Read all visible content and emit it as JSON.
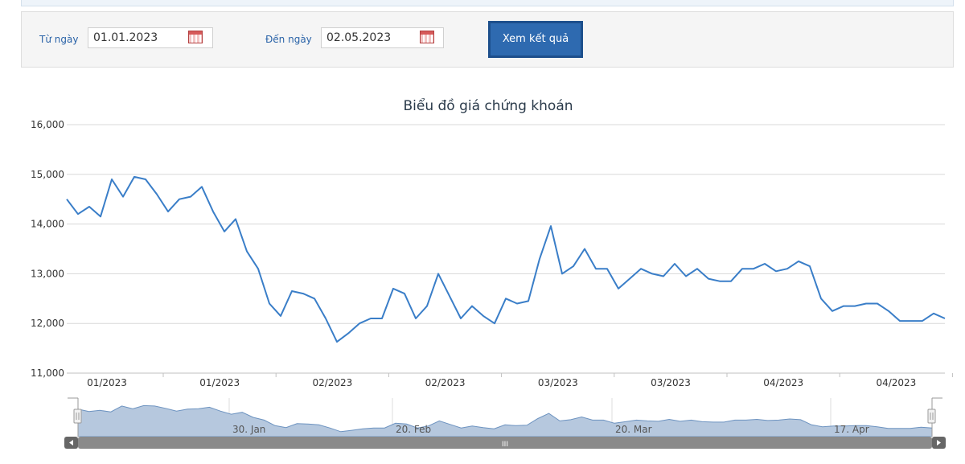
{
  "filter": {
    "from_label": "Từ ngày",
    "from_value": "01.01.2023",
    "to_label": "Đến ngày",
    "to_value": "02.05.2023",
    "submit_label": "Xem kết quả"
  },
  "colors": {
    "line": "#3a7ec8",
    "navigator_fill": "#b6c8de",
    "navigator_line": "#6d93c0",
    "button": "#2e6ab0"
  },
  "chart_data": {
    "type": "line",
    "title": "Biểu đồ giá chứng khoán",
    "xlabel": "",
    "ylabel": "",
    "ylim": [
      11000,
      16000
    ],
    "grid": true,
    "legend": "none",
    "yticks": [
      "11,000",
      "12,000",
      "13,000",
      "14,000",
      "15,000",
      "16,000"
    ],
    "xticks": [
      "01/2023",
      "01/2023",
      "02/2023",
      "02/2023",
      "03/2023",
      "03/2023",
      "04/2023",
      "04/2023"
    ],
    "navigator_labels": [
      "30. Jan",
      "20. Feb",
      "20. Mar",
      "17. Apr"
    ],
    "scrollbar_grip": "III",
    "series": [
      {
        "values": [
          14500,
          14200,
          14350,
          14150,
          14900,
          14550,
          14950,
          14900,
          14600,
          14250,
          14500,
          14550,
          14750,
          14250,
          13850,
          14100,
          13450,
          13100,
          12400,
          12150,
          12650,
          12600,
          12500,
          12100,
          11630,
          11800,
          12000,
          12100,
          12100,
          12700,
          12600,
          12100,
          12350,
          13000,
          12550,
          12100,
          12350,
          12150,
          12000,
          12500,
          12400,
          12450,
          13300,
          13960,
          13000,
          13150,
          13500,
          13100,
          13100,
          12700,
          12900,
          13100,
          13000,
          12950,
          13200,
          12950,
          13100,
          12900,
          12850,
          12850,
          13100,
          13100,
          13200,
          13050,
          13100,
          13250,
          13150,
          12500,
          12250,
          12350,
          12350,
          12400,
          12400,
          12250,
          12050,
          12050,
          12050,
          12200,
          12100
        ]
      }
    ]
  }
}
